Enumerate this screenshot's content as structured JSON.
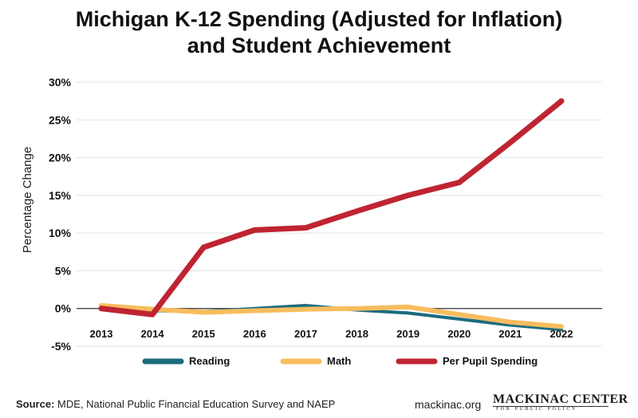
{
  "title_line1": "Michigan K-12 Spending (Adjusted for Inflation)",
  "title_line2": "and Student Achievement",
  "footer": {
    "source_label": "Source:",
    "source_text": " MDE, National Public Financial Education Survey and NAEP",
    "site": "mackinac.org",
    "logo_main": "MACKINAC CENTER",
    "logo_sub": "FOR PUBLIC POLICY"
  },
  "chart_data": {
    "type": "line",
    "ylabel": "Percentage Change",
    "xlabel": "",
    "x": [
      "2013",
      "2014",
      "2015",
      "2016",
      "2017",
      "2018",
      "2019",
      "2020",
      "2021",
      "2022"
    ],
    "ylim": [
      -5,
      30
    ],
    "yticks": [
      -5,
      0,
      5,
      10,
      15,
      20,
      25,
      30
    ],
    "ytick_labels": [
      "-5%",
      "0%",
      "5%",
      "10%",
      "15%",
      "20%",
      "25%",
      "30%"
    ],
    "grid": true,
    "legend_position": "bottom",
    "series": [
      {
        "name": "Reading",
        "color": "#1b6b7e",
        "values": [
          0.2,
          -0.3,
          -0.4,
          0.0,
          0.4,
          -0.2,
          -0.6,
          -1.4,
          -2.2,
          -2.8
        ]
      },
      {
        "name": "Math",
        "color": "#f7bd5e",
        "values": [
          0.4,
          -0.1,
          -0.5,
          -0.3,
          -0.1,
          0.0,
          0.2,
          -0.8,
          -1.8,
          -2.4
        ]
      },
      {
        "name": "Per Pupil Spending",
        "color": "#bf2432",
        "values": [
          0.0,
          -0.8,
          8.1,
          10.4,
          10.7,
          12.9,
          15.0,
          16.7,
          22.0,
          27.5
        ]
      }
    ]
  }
}
